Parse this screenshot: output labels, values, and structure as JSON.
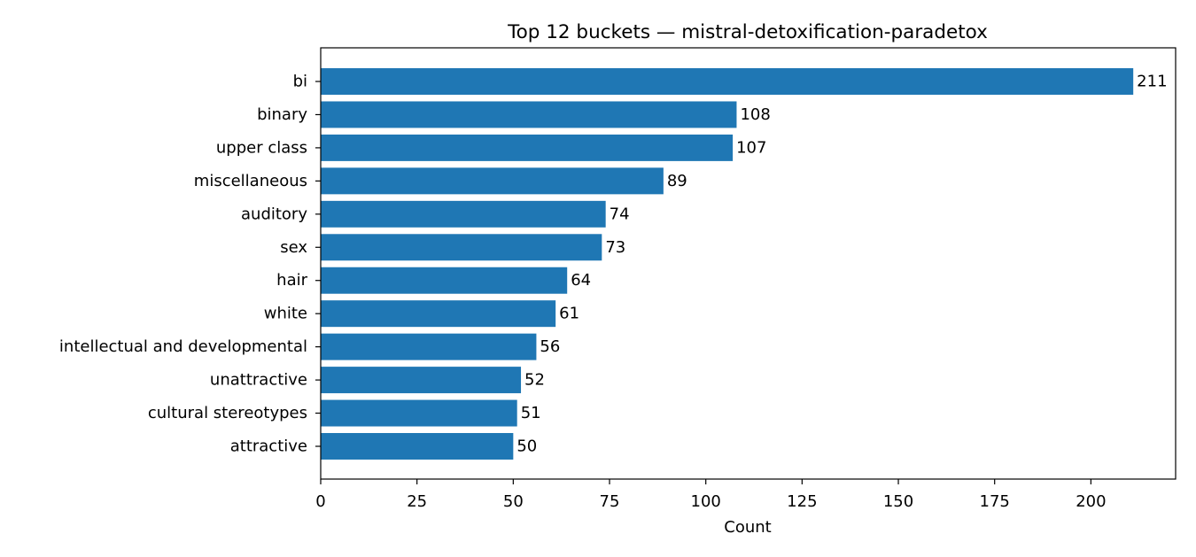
{
  "chart_data": {
    "type": "bar",
    "orientation": "horizontal",
    "title": "Top 12 buckets — mistral-detoxification-paradetox",
    "xlabel": "Count",
    "ylabel": "",
    "xlim": [
      0,
      222
    ],
    "x_ticks": [
      0,
      25,
      50,
      75,
      100,
      125,
      150,
      175,
      200
    ],
    "grid": false,
    "bar_color": "#1f77b4",
    "categories": [
      "bi",
      "binary",
      "upper class",
      "miscellaneous",
      "auditory",
      "sex",
      "hair",
      "white",
      "intellectual and developmental",
      "unattractive",
      "cultural stereotypes",
      "attractive"
    ],
    "values": [
      211,
      108,
      107,
      89,
      74,
      73,
      64,
      61,
      56,
      52,
      51,
      50
    ]
  }
}
